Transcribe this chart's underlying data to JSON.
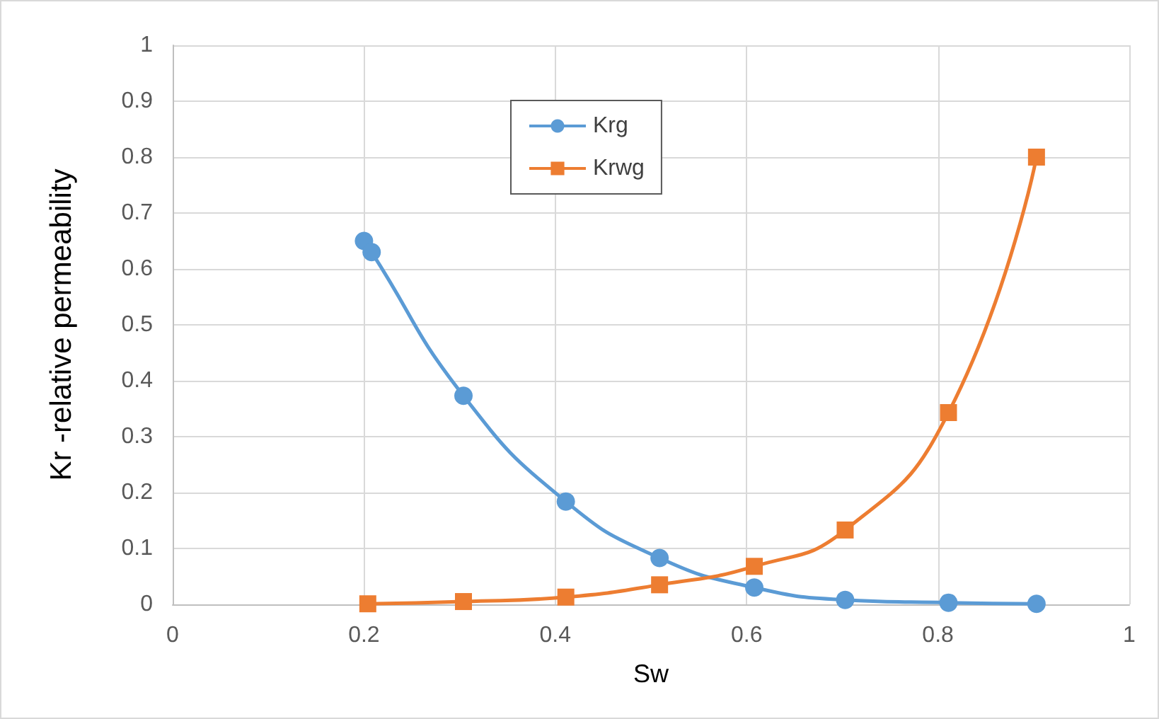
{
  "chart_data": {
    "type": "line",
    "xlabel": "Sw",
    "ylabel": "Kr -relative permeability",
    "xlim": [
      0,
      1
    ],
    "xticks": [
      0,
      0.2,
      0.4,
      0.6,
      0.8,
      1
    ],
    "ylim": [
      0,
      1
    ],
    "yticks": [
      0,
      0.1,
      0.2,
      0.3,
      0.4,
      0.5,
      0.6,
      0.7,
      0.8,
      0.9,
      1
    ],
    "grid": true,
    "legend": "top",
    "series": [
      {
        "name": "Krg",
        "color": "#5b9bd5",
        "marker": "circle",
        "x": [
          0.2,
          0.208,
          0.304,
          0.411,
          0.509,
          0.608,
          0.703,
          0.811,
          0.903
        ],
        "values": [
          0.65,
          0.63,
          0.373,
          0.184,
          0.083,
          0.03,
          0.008,
          0.003,
          0.001
        ]
      },
      {
        "name": "Krwg",
        "color": "#ed7d31",
        "marker": "square",
        "x": [
          0.204,
          0.304,
          0.411,
          0.509,
          0.608,
          0.703,
          0.811,
          0.903
        ],
        "values": [
          0.001,
          0.005,
          0.013,
          0.035,
          0.068,
          0.133,
          0.343,
          0.8
        ]
      }
    ]
  }
}
